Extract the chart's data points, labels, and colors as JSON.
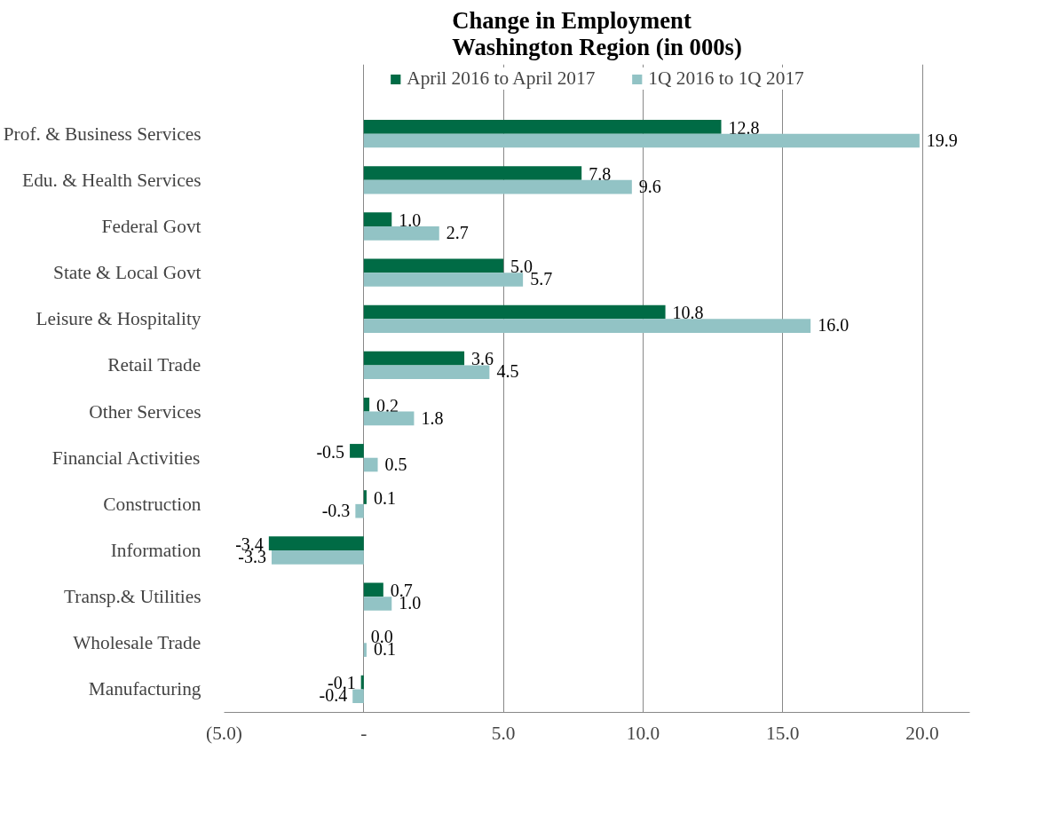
{
  "chart_data": {
    "type": "bar",
    "orientation": "horizontal",
    "title": "Change in Employment\nWashington Region (in 000s)",
    "categories": [
      "Prof. & Business Services",
      "Edu. & Health Services",
      "Federal Govt",
      "State & Local Govt",
      "Leisure & Hospitality",
      "Retail Trade",
      "Other Services",
      "Financial Activities",
      "Construction",
      "Information",
      "Transp.& Utilities",
      "Wholesale Trade",
      "Manufacturing"
    ],
    "series": [
      {
        "name": "April 2016 to April 2017",
        "color": "#006b45",
        "values": [
          12.8,
          7.8,
          1.0,
          5.0,
          10.8,
          3.6,
          0.2,
          -0.5,
          0.1,
          -3.4,
          0.7,
          0.0,
          -0.1
        ],
        "value_labels": [
          "12.8",
          "7.8",
          "1.0",
          "5.0",
          "10.8",
          "3.6",
          "0.2",
          "-0.5",
          "0.1",
          "-3.4",
          "0.7",
          "0.0",
          "-0.1"
        ]
      },
      {
        "name": "1Q 2016 to 1Q 2017",
        "color": "#92c3c5",
        "values": [
          19.9,
          9.6,
          2.7,
          5.7,
          16.0,
          4.5,
          1.8,
          0.5,
          -0.3,
          -3.3,
          1.0,
          0.1,
          -0.4
        ],
        "value_labels": [
          "19.9",
          "9.6",
          "2.7",
          "5.7",
          "16.0",
          "4.5",
          "1.8",
          "0.5",
          "-0.3",
          "-3.3",
          "1.0",
          "0.1",
          "-0.4"
        ]
      }
    ],
    "xlim": [
      -5,
      21.7
    ],
    "xticks": [
      {
        "value": -5,
        "label": "(5.0)"
      },
      {
        "value": 0,
        "label": "-"
      },
      {
        "value": 5,
        "label": "5.0"
      },
      {
        "value": 10,
        "label": "10.0"
      },
      {
        "value": 15,
        "label": "15.0"
      },
      {
        "value": 20,
        "label": "20.0"
      }
    ],
    "grid": "x",
    "legend": "top"
  }
}
